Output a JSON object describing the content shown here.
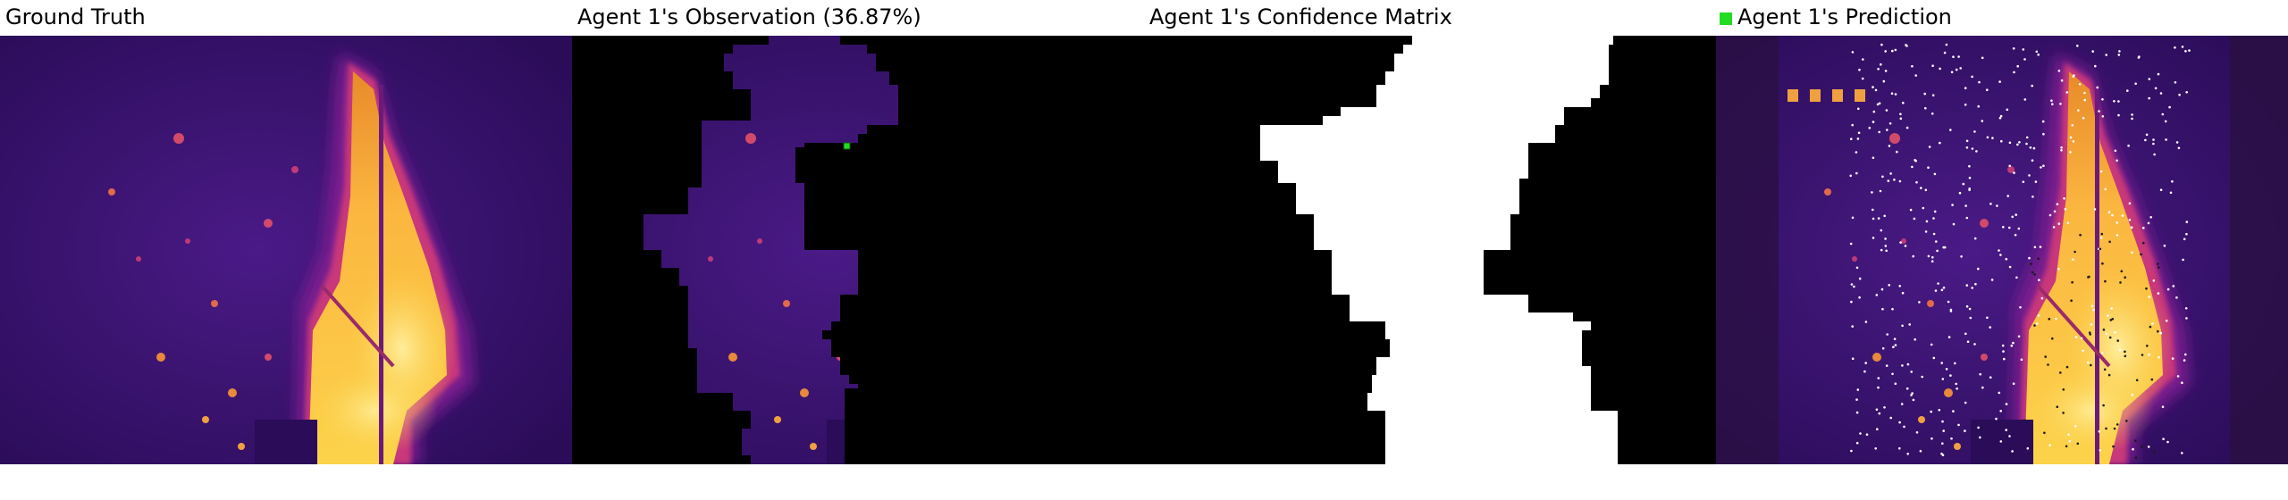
{
  "panels": [
    {
      "title": "Ground Truth"
    },
    {
      "title": "Agent 1's Observation (36.87%)"
    },
    {
      "title": "Agent 1's Confidence Matrix"
    },
    {
      "title": "Agent 1's Prediction"
    }
  ],
  "legend": {
    "color": "#22dd22"
  },
  "colormap": [
    "#240a4a",
    "#5a1a8a",
    "#b02a86",
    "#f05a2a",
    "#fcd34a",
    "#fff7b0"
  ]
}
